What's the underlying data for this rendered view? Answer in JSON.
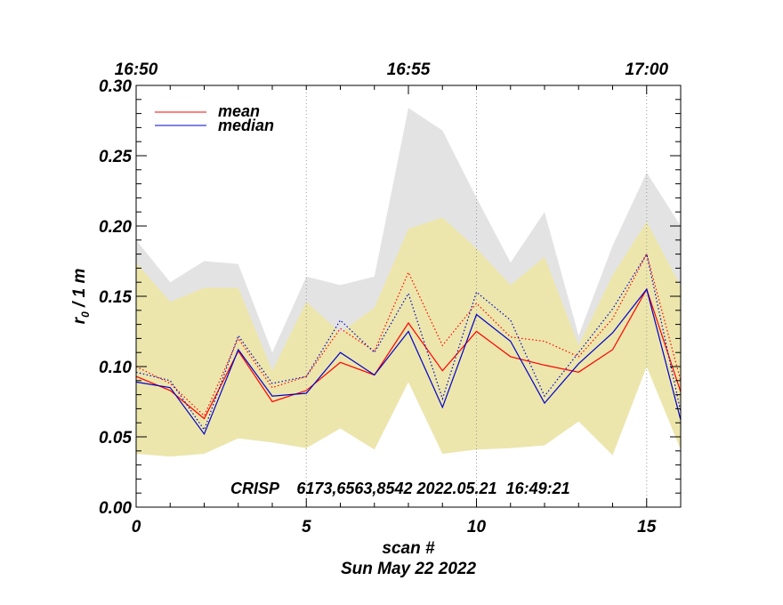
{
  "chart_data": {
    "type": "line",
    "xlabel": "scan #",
    "ylabel": "r",
    "ylabel_sub": "0",
    "ylabel_suffix": " / 1 m",
    "date_label": "Sun May 22 2022",
    "annotation": "CRISP    6173,6563,8542 2022.05.21  16:49:21",
    "xlim": [
      0,
      16
    ],
    "ylim": [
      0,
      0.3
    ],
    "x_ticks": [
      "0",
      "5",
      "10",
      "15"
    ],
    "y_ticks": [
      "0.00",
      "0.05",
      "0.10",
      "0.15",
      "0.20",
      "0.25",
      "0.30"
    ],
    "top_ticks": [
      {
        "label": "16:50",
        "x": 0
      },
      {
        "label": "16:55",
        "x": 8
      },
      {
        "label": "17:00",
        "x": 15
      }
    ],
    "vertical_gridlines_x": [
      5,
      10,
      15
    ],
    "x": [
      0,
      1,
      2,
      3,
      4,
      5,
      6,
      7,
      8,
      9,
      10,
      11,
      12,
      13,
      14,
      15,
      16
    ],
    "bands": [
      {
        "name": "max range",
        "color": "#e3e3e3",
        "lower": [
          0.038,
          0.036,
          0.038,
          0.049,
          0.046,
          0.042,
          0.056,
          0.041,
          0.089,
          0.038,
          0.041,
          0.042,
          0.044,
          0.061,
          0.037,
          0.1,
          0.041
        ],
        "upper": [
          0.19,
          0.16,
          0.175,
          0.173,
          0.11,
          0.164,
          0.158,
          0.164,
          0.284,
          0.268,
          0.22,
          0.174,
          0.21,
          0.122,
          0.186,
          0.238,
          0.2
        ]
      },
      {
        "name": "inner range",
        "color": "#ece6ac",
        "lower": [
          0.038,
          0.036,
          0.038,
          0.049,
          0.046,
          0.042,
          0.056,
          0.041,
          0.089,
          0.038,
          0.041,
          0.042,
          0.044,
          0.061,
          0.037,
          0.1,
          0.041
        ],
        "upper": [
          0.174,
          0.146,
          0.156,
          0.156,
          0.097,
          0.146,
          0.124,
          0.142,
          0.198,
          0.206,
          0.184,
          0.158,
          0.178,
          0.115,
          0.165,
          0.203,
          0.157
        ]
      }
    ],
    "series": [
      {
        "name": "mean",
        "color": "#ff0000",
        "style": "solid",
        "values": [
          0.093,
          0.083,
          0.063,
          0.111,
          0.075,
          0.083,
          0.103,
          0.094,
          0.131,
          0.097,
          0.125,
          0.107,
          0.101,
          0.096,
          0.112,
          0.155,
          0.082
        ]
      },
      {
        "name": "median",
        "color": "#0000cc",
        "style": "solid",
        "values": [
          0.089,
          0.085,
          0.052,
          0.112,
          0.079,
          0.081,
          0.11,
          0.094,
          0.125,
          0.071,
          0.137,
          0.118,
          0.074,
          0.102,
          0.124,
          0.155,
          0.062
        ]
      },
      {
        "name": "mean",
        "color": "#ff0000",
        "style": "dotted",
        "values": [
          0.1,
          0.088,
          0.065,
          0.12,
          0.085,
          0.093,
          0.127,
          0.111,
          0.167,
          0.115,
          0.145,
          0.121,
          0.118,
          0.107,
          0.134,
          0.18,
          0.09
        ]
      },
      {
        "name": "median",
        "color": "#0000cc",
        "style": "dotted",
        "values": [
          0.096,
          0.09,
          0.055,
          0.122,
          0.088,
          0.093,
          0.133,
          0.11,
          0.152,
          0.077,
          0.153,
          0.133,
          0.079,
          0.11,
          0.141,
          0.18,
          0.068
        ]
      }
    ],
    "legend": [
      {
        "label": "mean",
        "color": "#ff0000"
      },
      {
        "label": "median",
        "color": "#0000cc"
      }
    ],
    "legend_position": "top-left"
  }
}
